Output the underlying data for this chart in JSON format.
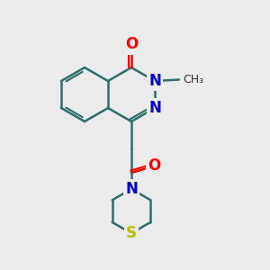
{
  "bg_color": "#ebebeb",
  "bond_color": "#2d6e6e",
  "bond_width": 1.8,
  "atom_colors": {
    "O": "#ff0000",
    "N": "#0000cc",
    "S": "#bbbb00",
    "C": "#2d6e6e"
  },
  "font_size_atom": 12,
  "scale": 1.3
}
